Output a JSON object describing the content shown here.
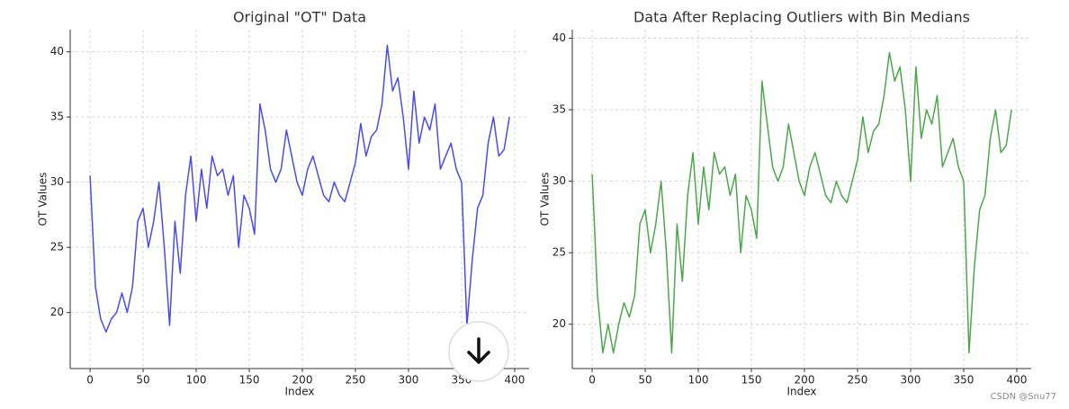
{
  "watermark": "CSDN @Snu77",
  "chart_data": [
    {
      "type": "line",
      "title": "Original \"OT\" Data",
      "xlabel": "Index",
      "ylabel": "OT Values",
      "grid": true,
      "x": [
        0,
        5,
        10,
        15,
        20,
        25,
        30,
        35,
        40,
        45,
        50,
        55,
        60,
        65,
        70,
        75,
        80,
        85,
        90,
        95,
        100,
        105,
        110,
        115,
        120,
        125,
        130,
        135,
        140,
        145,
        150,
        155,
        160,
        165,
        170,
        175,
        180,
        185,
        190,
        195,
        200,
        205,
        210,
        215,
        220,
        225,
        230,
        235,
        240,
        245,
        250,
        255,
        260,
        265,
        270,
        275,
        280,
        285,
        290,
        295,
        300,
        305,
        310,
        315,
        320,
        325,
        330,
        335,
        340,
        345,
        350,
        355,
        360,
        365,
        370,
        375,
        380,
        385,
        390,
        395
      ],
      "series": [
        {
          "color": "#4b4bea",
          "values": [
            30.5,
            22,
            19.5,
            18.5,
            19.5,
            20,
            21.5,
            20,
            22,
            27,
            28,
            25,
            27,
            30,
            25,
            19,
            27,
            23,
            29,
            32,
            27,
            31,
            28,
            32,
            30.5,
            31,
            29,
            30.5,
            25,
            29,
            28,
            26,
            36,
            34,
            31,
            30,
            31,
            34,
            32,
            30,
            29,
            31,
            32,
            30.5,
            29,
            28.5,
            30,
            29,
            28.5,
            30,
            31.5,
            34.5,
            32,
            33.5,
            34,
            36,
            40.5,
            37,
            38,
            35,
            31,
            37,
            33,
            35,
            34,
            36,
            31,
            32,
            33,
            31,
            30,
            19,
            24,
            28,
            29,
            33,
            35,
            32,
            32.5,
            35
          ]
        }
      ],
      "xlim": [
        -18.7,
        413.6
      ],
      "xticks": [
        0,
        50,
        100,
        150,
        200,
        250,
        300,
        350,
        400
      ],
      "ylim": [
        15.7,
        41.7
      ],
      "yticks": [
        20,
        25,
        30,
        35,
        40
      ]
    },
    {
      "type": "line",
      "title": "Data After Replacing Outliers with Bin Medians",
      "xlabel": "Index",
      "ylabel": "OT Values",
      "grid": true,
      "x": [
        0,
        5,
        10,
        15,
        20,
        25,
        30,
        35,
        40,
        45,
        50,
        55,
        60,
        65,
        70,
        75,
        80,
        85,
        90,
        95,
        100,
        105,
        110,
        115,
        120,
        125,
        130,
        135,
        140,
        145,
        150,
        155,
        160,
        165,
        170,
        175,
        180,
        185,
        190,
        195,
        200,
        205,
        210,
        215,
        220,
        225,
        230,
        235,
        240,
        245,
        250,
        255,
        260,
        265,
        270,
        275,
        280,
        285,
        290,
        295,
        300,
        305,
        310,
        315,
        320,
        325,
        330,
        335,
        340,
        345,
        350,
        355,
        360,
        365,
        370,
        375,
        380,
        385,
        390,
        395
      ],
      "series": [
        {
          "color": "#4ca64c",
          "values": [
            30.5,
            22,
            18,
            20,
            18,
            20,
            21.5,
            20.5,
            22,
            27,
            28,
            25,
            27,
            30,
            25,
            18,
            27,
            23,
            29,
            32,
            27,
            31,
            28,
            32,
            30.5,
            31,
            29,
            30.5,
            25,
            29,
            28,
            26,
            37,
            34,
            31,
            30,
            31,
            34,
            32,
            30,
            29,
            31,
            32,
            30.5,
            29,
            28.5,
            30,
            29,
            28.5,
            30,
            31.5,
            34.5,
            32,
            33.5,
            34,
            36,
            39,
            37,
            38,
            35,
            30,
            38,
            33,
            35,
            34,
            36,
            31,
            32,
            33,
            31,
            30,
            18,
            24,
            28,
            29,
            33,
            35,
            32,
            32.5,
            35
          ]
        }
      ],
      "xlim": [
        -18.7,
        413.6
      ],
      "xticks": [
        0,
        50,
        100,
        150,
        200,
        250,
        300,
        350,
        400
      ],
      "ylim": [
        16.9,
        40.6
      ],
      "yticks": [
        20,
        25,
        30,
        35,
        40
      ]
    }
  ]
}
